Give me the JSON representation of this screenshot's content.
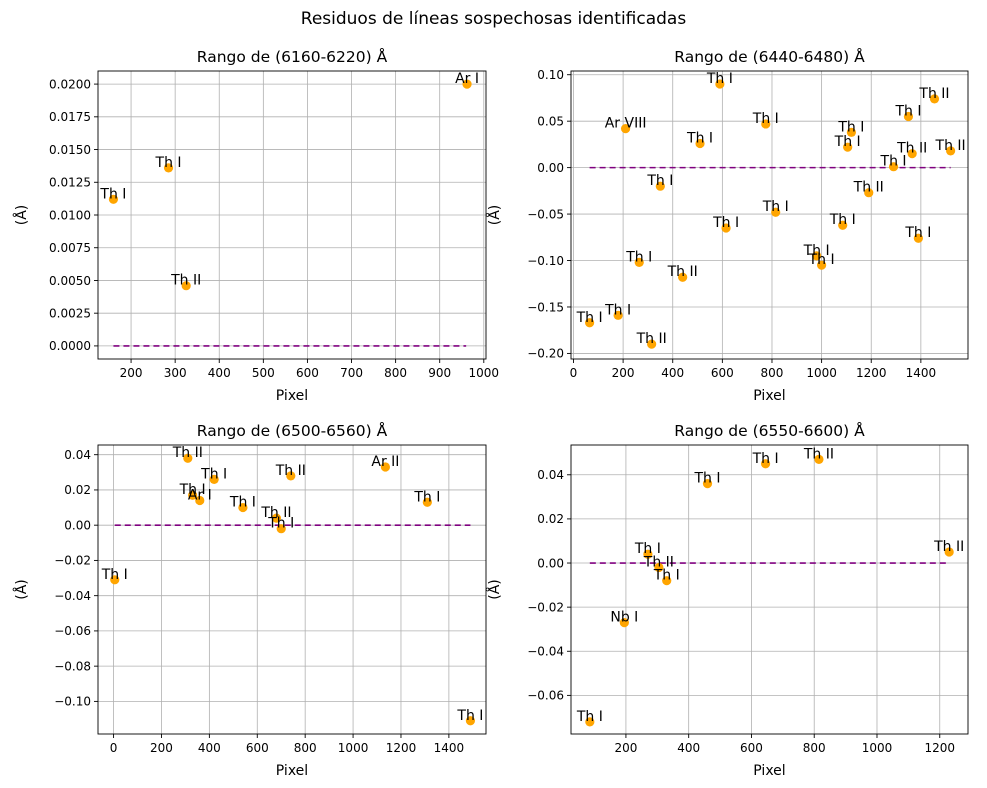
{
  "figure_title": "Residuos de líneas sospechosas identificadas",
  "colors": {
    "marker": "#FFA500",
    "zero_line": "#800080",
    "grid": "#b0b0b0"
  },
  "chart_data": [
    {
      "type": "scatter",
      "title": "Rango de (6160-6220) Å",
      "xlabel": "Pixel",
      "ylabel": "(Å)",
      "xlim": [
        125,
        1005
      ],
      "ylim": [
        -0.001,
        0.021
      ],
      "xticks": [
        200,
        300,
        400,
        500,
        600,
        700,
        800,
        900,
        1000
      ],
      "yticks": [
        0.0,
        0.0025,
        0.005,
        0.0075,
        0.01,
        0.0125,
        0.015,
        0.0175,
        0.02
      ],
      "ytick_labels": [
        "0.0000",
        "0.0025",
        "0.0050",
        "0.0075",
        "0.0100",
        "0.0125",
        "0.0150",
        "0.0175",
        "0.0200"
      ],
      "grid": true,
      "reference_line": {
        "y": 0,
        "x": [
          160,
          960
        ]
      },
      "points": [
        {
          "x": 160,
          "y": 0.0112,
          "label": "Th I"
        },
        {
          "x": 285,
          "y": 0.0136,
          "label": "Th I"
        },
        {
          "x": 325,
          "y": 0.0046,
          "label": "Th II"
        },
        {
          "x": 962,
          "y": 0.02,
          "label": "Ar I"
        }
      ]
    },
    {
      "type": "scatter",
      "title": "Rango de (6440-6480) Å",
      "xlabel": "Pixel",
      "ylabel": "(Å)",
      "xlim": [
        -10,
        1590
      ],
      "ylim": [
        -0.206,
        0.104
      ],
      "xticks": [
        0,
        200,
        400,
        600,
        800,
        1000,
        1200,
        1400
      ],
      "yticks": [
        -0.2,
        -0.15,
        -0.1,
        -0.05,
        0.0,
        0.05,
        0.1
      ],
      "ytick_labels": [
        "−0.20",
        "−0.15",
        "−0.10",
        "−0.05",
        "0.00",
        "0.05",
        "0.10"
      ],
      "grid": true,
      "reference_line": {
        "y": 0,
        "x": [
          65,
          1520
        ]
      },
      "points": [
        {
          "x": 65,
          "y": -0.167,
          "label": "Th I"
        },
        {
          "x": 180,
          "y": -0.159,
          "label": "Th I"
        },
        {
          "x": 210,
          "y": 0.042,
          "label": "Ar VIII"
        },
        {
          "x": 265,
          "y": -0.102,
          "label": "Th I"
        },
        {
          "x": 315,
          "y": -0.19,
          "label": "Th II"
        },
        {
          "x": 350,
          "y": -0.02,
          "label": "Th I"
        },
        {
          "x": 440,
          "y": -0.118,
          "label": "Th II"
        },
        {
          "x": 510,
          "y": 0.026,
          "label": "Th I"
        },
        {
          "x": 590,
          "y": 0.09,
          "label": "Th I"
        },
        {
          "x": 615,
          "y": -0.065,
          "label": "Th I"
        },
        {
          "x": 775,
          "y": 0.047,
          "label": "Th I"
        },
        {
          "x": 815,
          "y": -0.048,
          "label": "Th I"
        },
        {
          "x": 980,
          "y": -0.095,
          "label": "Th I"
        },
        {
          "x": 1000,
          "y": -0.105,
          "label": "Th I"
        },
        {
          "x": 1085,
          "y": -0.062,
          "label": "Th I"
        },
        {
          "x": 1105,
          "y": 0.022,
          "label": "Th I"
        },
        {
          "x": 1120,
          "y": 0.038,
          "label": "Th I"
        },
        {
          "x": 1190,
          "y": -0.027,
          "label": "Th II"
        },
        {
          "x": 1290,
          "y": 0.001,
          "label": "Th I"
        },
        {
          "x": 1350,
          "y": 0.055,
          "label": "Th I"
        },
        {
          "x": 1365,
          "y": 0.015,
          "label": "Th II"
        },
        {
          "x": 1390,
          "y": -0.076,
          "label": "Th I"
        },
        {
          "x": 1455,
          "y": 0.074,
          "label": "Th II"
        },
        {
          "x": 1520,
          "y": 0.018,
          "label": "Th II"
        }
      ]
    },
    {
      "type": "scatter",
      "title": "Rango de (6500-6560) Å",
      "xlabel": "Pixel",
      "ylabel": "(Å)",
      "xlim": [
        -65,
        1555
      ],
      "ylim": [
        -0.1185,
        0.0455
      ],
      "xticks": [
        0,
        200,
        400,
        600,
        800,
        1000,
        1200,
        1400
      ],
      "yticks": [
        -0.1,
        -0.08,
        -0.06,
        -0.04,
        -0.02,
        0.0,
        0.02,
        0.04
      ],
      "ytick_labels": [
        "−0.10",
        "−0.08",
        "−0.06",
        "−0.04",
        "−0.02",
        "0.00",
        "0.02",
        "0.04"
      ],
      "grid": true,
      "reference_line": {
        "y": 0,
        "x": [
          5,
          1490
        ]
      },
      "points": [
        {
          "x": 5,
          "y": -0.031,
          "label": "Th I"
        },
        {
          "x": 310,
          "y": 0.038,
          "label": "Th II"
        },
        {
          "x": 330,
          "y": 0.017,
          "label": "Th I"
        },
        {
          "x": 360,
          "y": 0.014,
          "label": "Ar I"
        },
        {
          "x": 420,
          "y": 0.026,
          "label": "Th I"
        },
        {
          "x": 540,
          "y": 0.01,
          "label": "Th I"
        },
        {
          "x": 680,
          "y": 0.004,
          "label": "Th II"
        },
        {
          "x": 700,
          "y": -0.002,
          "label": "Th I"
        },
        {
          "x": 740,
          "y": 0.028,
          "label": "Th II"
        },
        {
          "x": 1135,
          "y": 0.033,
          "label": "Ar II"
        },
        {
          "x": 1310,
          "y": 0.013,
          "label": "Th I"
        },
        {
          "x": 1490,
          "y": -0.111,
          "label": "Th I"
        }
      ]
    },
    {
      "type": "scatter",
      "title": "Rango de (6550-6600) Å",
      "xlabel": "Pixel",
      "ylabel": "(Å)",
      "xlim": [
        25,
        1290
      ],
      "ylim": [
        -0.0775,
        0.0535
      ],
      "xticks": [
        200,
        400,
        600,
        800,
        1000,
        1200
      ],
      "yticks": [
        -0.06,
        -0.04,
        -0.02,
        0.0,
        0.02,
        0.04
      ],
      "ytick_labels": [
        "−0.06",
        "−0.04",
        "−0.02",
        "0.00",
        "0.02",
        "0.04"
      ],
      "grid": true,
      "reference_line": {
        "y": 0,
        "x": [
          85,
          1230
        ]
      },
      "points": [
        {
          "x": 85,
          "y": -0.072,
          "label": "Th I"
        },
        {
          "x": 195,
          "y": -0.027,
          "label": "Nb I"
        },
        {
          "x": 270,
          "y": 0.004,
          "label": "Th I"
        },
        {
          "x": 305,
          "y": -0.002,
          "label": "Th II"
        },
        {
          "x": 330,
          "y": -0.008,
          "label": "Th I"
        },
        {
          "x": 460,
          "y": 0.036,
          "label": "Th I"
        },
        {
          "x": 645,
          "y": 0.045,
          "label": "Th I"
        },
        {
          "x": 815,
          "y": 0.047,
          "label": "Th II"
        },
        {
          "x": 1230,
          "y": 0.005,
          "label": "Th II"
        }
      ]
    }
  ]
}
